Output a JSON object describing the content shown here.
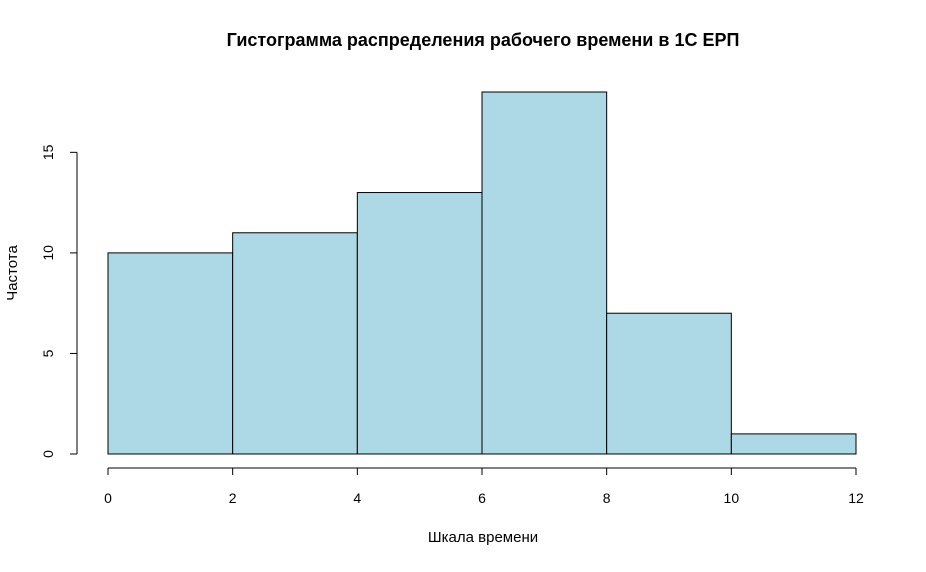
{
  "chart_data": {
    "type": "bar",
    "title": "Гистограмма распределения рабочего времени в 1С ЕРП",
    "xlabel": "Шкала времени",
    "ylabel": "Частота",
    "bins": [
      {
        "from": 0,
        "to": 2,
        "count": 10
      },
      {
        "from": 2,
        "to": 4,
        "count": 11
      },
      {
        "from": 4,
        "to": 6,
        "count": 13
      },
      {
        "from": 6,
        "to": 8,
        "count": 18
      },
      {
        "from": 8,
        "to": 10,
        "count": 7
      },
      {
        "from": 10,
        "to": 12,
        "count": 1
      }
    ],
    "x_ticks": [
      0,
      2,
      4,
      6,
      8,
      10,
      12
    ],
    "x_tick_labels": [
      "0",
      "2",
      "4",
      "6",
      "8",
      "10",
      "12"
    ],
    "y_ticks": [
      0,
      5,
      10,
      15
    ],
    "y_tick_labels": [
      "0",
      "5",
      "10",
      "15"
    ],
    "xlim": [
      0,
      12
    ],
    "ylim": [
      0,
      18
    ],
    "grid": false,
    "colors": {
      "bar_fill": "#add8e6",
      "bar_stroke": "#000000",
      "axis": "#000000"
    }
  }
}
